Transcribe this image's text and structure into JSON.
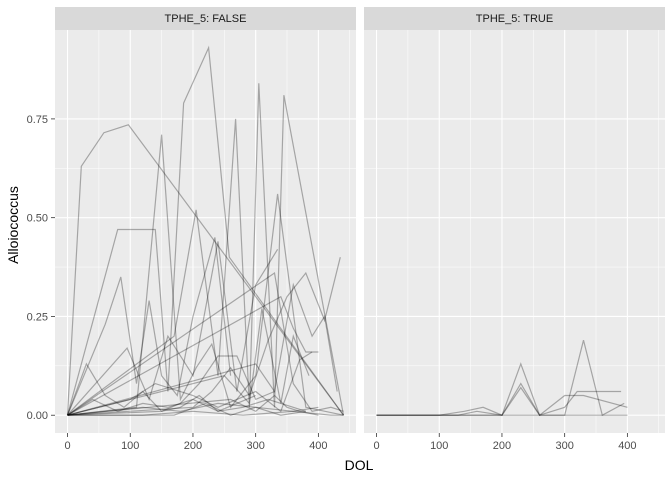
{
  "chart_data": {
    "type": "line",
    "xlabel": "DOL",
    "ylabel": "Alloiococcus",
    "xlim": [
      -20,
      460
    ],
    "ylim": [
      -0.045,
      0.975
    ],
    "x_ticks": [
      0,
      100,
      200,
      300,
      400
    ],
    "y_ticks": [
      0.0,
      0.25,
      0.5,
      0.75
    ],
    "y_tick_labels": [
      "0.00",
      "0.25",
      "0.50",
      "0.75"
    ],
    "line_color": "#000000",
    "panels": [
      {
        "label": "TPHE_5: FALSE",
        "series": [
          {
            "x": [
              0,
              22,
              58,
              97,
              440
            ],
            "y": [
              0,
              0.63,
              0.715,
              0.735,
              0
            ]
          },
          {
            "x": [
              0,
              80,
              140,
              160,
              185,
              225,
              258,
              440
            ],
            "y": [
              0,
              0.47,
              0.47,
              0.06,
              0.79,
              0.93,
              0.4,
              0
            ]
          },
          {
            "x": [
              0,
              170,
              205,
              240,
              268,
              290,
              305,
              330,
              345,
              440
            ],
            "y": [
              0,
              0.2,
              0.52,
              0.1,
              0.75,
              0.02,
              0.84,
              0.02,
              0.81,
              0
            ]
          },
          {
            "x": [
              0,
              110,
              150,
              180,
              205,
              230,
              260,
              300,
              335,
              380,
              440
            ],
            "y": [
              0,
              0.02,
              0.71,
              0.04,
              0.12,
              0.18,
              0.02,
              0.1,
              0.56,
              0.02,
              0
            ]
          },
          {
            "x": [
              0,
              60,
              85,
              110,
              130,
              150,
              175,
              200,
              235,
              260
            ],
            "y": [
              0,
              0.23,
              0.35,
              0.08,
              0.29,
              0.1,
              0.05,
              0.25,
              0.45,
              0.1
            ]
          },
          {
            "x": [
              0,
              95,
              130,
              160,
              200,
              240,
              270,
              300,
              335
            ],
            "y": [
              0,
              0.17,
              0.04,
              0.2,
              0.1,
              0.44,
              0.06,
              0.33,
              0.42
            ]
          },
          {
            "x": [
              0,
              30,
              60,
              90,
              120,
              150,
              180,
              210,
              240,
              270,
              300,
              330
            ],
            "y": [
              0,
              0.13,
              0.05,
              0.02,
              0.06,
              0.01,
              0.03,
              0.08,
              0.15,
              0.15,
              0.04,
              0.06
            ]
          },
          {
            "x": [
              0,
              100,
              140,
              200,
              240,
              300,
              340,
              370,
              390
            ],
            "y": [
              0,
              0.04,
              0.08,
              0.05,
              0.02,
              0.06,
              0.01,
              0.14,
              0.16
            ]
          },
          {
            "x": [
              0,
              150,
              180,
              210,
              240,
              270,
              300
            ],
            "y": [
              0,
              0.01,
              0.02,
              0.05,
              0.01,
              0.03,
              0.05
            ]
          },
          {
            "x": [
              0,
              200,
              230,
              260,
              290,
              320,
              350,
              380,
              410,
              435
            ],
            "y": [
              0,
              0.02,
              0.06,
              0.12,
              0.05,
              0.19,
              0.3,
              0.36,
              0.24,
              0.4
            ]
          },
          {
            "x": [
              0,
              300,
              330,
              360,
              390,
              410,
              430
            ],
            "y": [
              0,
              0.13,
              0.06,
              0.33,
              0.2,
              0.25,
              0.06
            ]
          },
          {
            "x": [
              0,
              330,
              360,
              390,
              420,
              440
            ],
            "y": [
              0,
              0.36,
              0.08,
              0.01,
              0.02,
              0.01
            ]
          },
          {
            "x": [
              0,
              40,
              80,
              120,
              160,
              200,
              240,
              280,
              320,
              360,
              380
            ],
            "y": [
              0,
              0.04,
              0.01,
              0.03,
              0.02,
              0.04,
              0.01,
              0.02,
              0.04,
              0.02,
              0.01
            ]
          },
          {
            "x": [
              0,
              60,
              120,
              180,
              240,
              300,
              360,
              400
            ],
            "y": [
              0,
              0.01,
              0.02,
              0.01,
              0.03,
              0.02,
              0.01,
              0.02
            ]
          },
          {
            "x": [
              0,
              250,
              290,
              310,
              340,
              360,
              385
            ],
            "y": [
              0,
              0.1,
              0.03,
              0.27,
              0.03,
              0.2,
              0.1
            ]
          },
          {
            "x": [
              0,
              260,
              300,
              330,
              350,
              370,
              400
            ],
            "y": [
              0,
              0.04,
              0.01,
              0.05,
              0.02,
              0.01,
              0.0
            ]
          },
          {
            "x": [
              0,
              340,
              360,
              380,
              400
            ],
            "y": [
              0,
              0.3,
              0.22,
              0.16,
              0.16
            ]
          },
          {
            "x": [
              0,
              170,
              220,
              260,
              300,
              340,
              380
            ],
            "y": [
              0,
              0.0,
              0.03,
              0.0,
              0.02,
              0.0,
              0.01
            ]
          },
          {
            "x": [
              0,
              120,
              200,
              280,
              360,
              420,
              440
            ],
            "y": [
              0,
              0.0,
              0.01,
              0.0,
              0.01,
              0.0,
              0.0
            ]
          }
        ]
      },
      {
        "label": "TPHE_5: TRUE",
        "series": [
          {
            "x": [
              0,
              130,
              160,
              200,
              230,
              260,
              300,
              330,
              360,
              395
            ],
            "y": [
              0,
              0.0,
              0.01,
              0.0,
              0.13,
              0.0,
              0.0,
              0.19,
              0.0,
              0.03
            ]
          },
          {
            "x": [
              0,
              100,
              140,
              170,
              200,
              230,
              260,
              300,
              330,
              400
            ],
            "y": [
              0,
              0.0,
              0.01,
              0.02,
              0.0,
              0.07,
              0.0,
              0.05,
              0.05,
              0.02
            ]
          },
          {
            "x": [
              0,
              200,
              230,
              260,
              300,
              320,
              390
            ],
            "y": [
              0,
              0.0,
              0.08,
              0.0,
              0.02,
              0.06,
              0.06
            ]
          },
          {
            "x": [
              0,
              150,
              250,
              320,
              400
            ],
            "y": [
              0,
              0.0,
              0.0,
              0.0,
              0.0
            ]
          }
        ]
      }
    ]
  }
}
